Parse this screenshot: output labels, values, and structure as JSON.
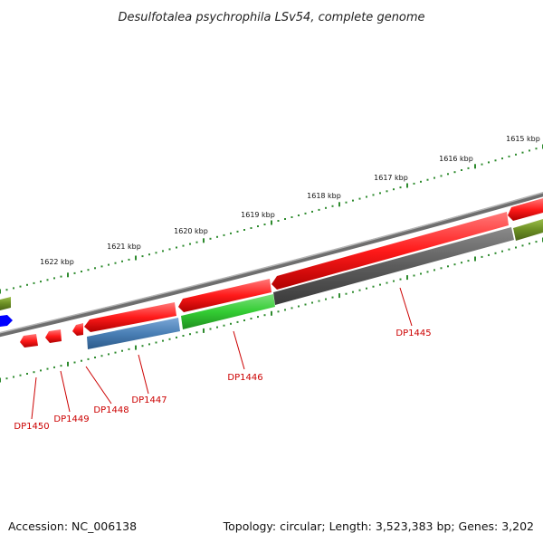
{
  "title": "Desulfotalea psychrophila LSv54, complete genome",
  "footer": {
    "accession": "Accession: NC_006138",
    "topology": "Topology: circular; Length: 3,523,383 bp; Genes: 3,202"
  },
  "scale_labels": [
    "1615 kbp",
    "1616 kbp",
    "1617 kbp",
    "1618 kbp",
    "1619 kbp",
    "1620 kbp",
    "1621 kbp",
    "1622 kbp"
  ],
  "gene_labels": [
    "DP1445",
    "DP1446",
    "DP1447",
    "DP1448",
    "DP1449",
    "DP1450"
  ],
  "colors": {
    "forward_gene": "#ff1a1a",
    "backbone": "#8a8a8a",
    "tick": "#2e8b2e",
    "label": "#cc0000",
    "gray_track": "#666666",
    "green_track": "#33cc33",
    "blue_track": "#4a7fb5",
    "olive_track": "#6b8e23",
    "blue_feature": "#0000ff"
  }
}
